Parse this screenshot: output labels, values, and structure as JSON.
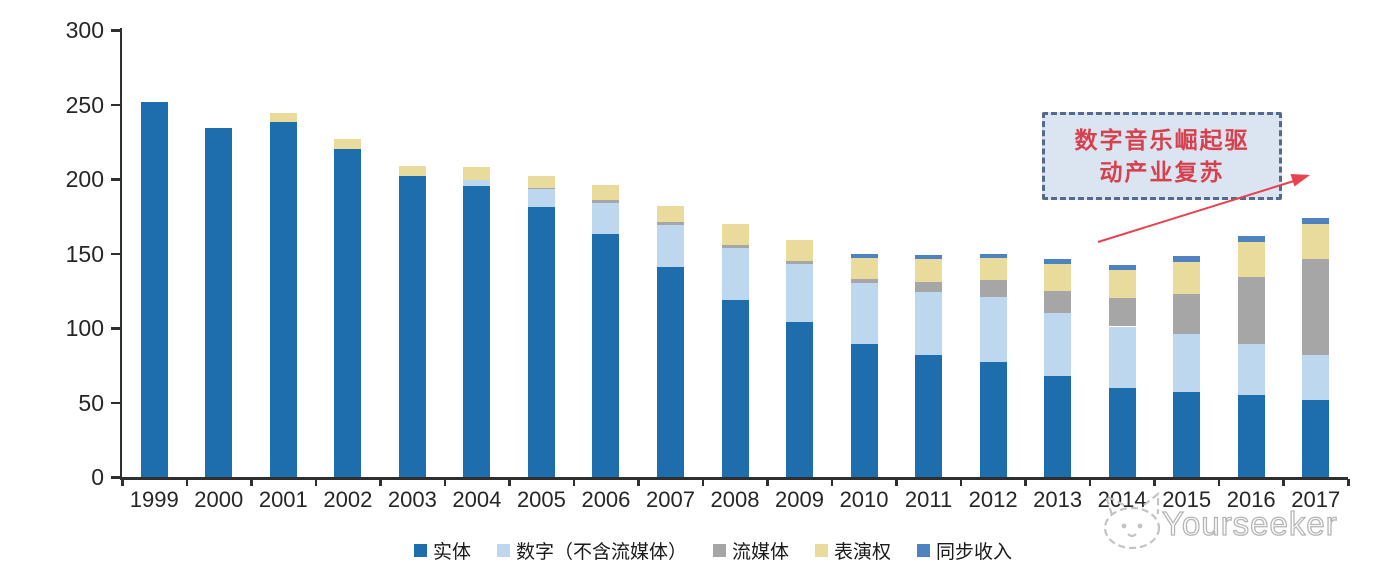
{
  "chart_data": {
    "type": "bar",
    "stacked": true,
    "title": "",
    "xlabel": "",
    "ylabel": "",
    "categories": [
      "1999",
      "2000",
      "2001",
      "2002",
      "2003",
      "2004",
      "2005",
      "2006",
      "2007",
      "2008",
      "2009",
      "2010",
      "2011",
      "2012",
      "2013",
      "2014",
      "2015",
      "2016",
      "2017"
    ],
    "series": [
      {
        "name": "实体",
        "color": "#1E6DAD",
        "values": [
          252,
          234,
          238,
          220,
          202,
          195,
          181,
          163,
          141,
          119,
          104,
          89,
          82,
          77,
          68,
          60,
          57,
          55,
          52
        ]
      },
      {
        "name": "数字（不含流媒体）",
        "color": "#BDD7EE",
        "values": [
          0,
          0,
          0,
          0,
          0,
          4,
          12,
          21,
          28,
          35,
          39,
          41,
          42,
          44,
          42,
          41,
          39,
          34,
          30
        ]
      },
      {
        "name": "流媒体",
        "color": "#A6A6A6",
        "values": [
          0,
          0,
          0,
          0,
          0,
          0,
          1,
          2,
          2,
          2,
          2,
          3,
          7,
          11,
          15,
          19,
          27,
          45,
          64
        ]
      },
      {
        "name": "表演权",
        "color": "#E9DB9B",
        "values": [
          0,
          0,
          6,
          7,
          7,
          9,
          8,
          10,
          11,
          14,
          14,
          14,
          15,
          15,
          18,
          19,
          21,
          24,
          24
        ]
      },
      {
        "name": "同步收入",
        "color": "#4F82C0",
        "values": [
          0,
          0,
          0,
          0,
          0,
          0,
          0,
          0,
          0,
          0,
          0,
          3,
          3,
          3,
          3,
          3,
          4,
          4,
          4
        ]
      }
    ],
    "ylim": [
      0,
      300
    ],
    "yticks": [
      0,
      50,
      100,
      150,
      200,
      250,
      300
    ],
    "grid": false,
    "legend_position": "bottom"
  },
  "annotation": {
    "line1": "数字音乐崛起驱",
    "line2": "动产业复苏",
    "text_color": "#d7414e",
    "box_fill": "#dbe4f1",
    "border_color": "#54698c",
    "arrow_color": "#e8424e"
  },
  "watermark": {
    "text": "Yourseeker"
  }
}
